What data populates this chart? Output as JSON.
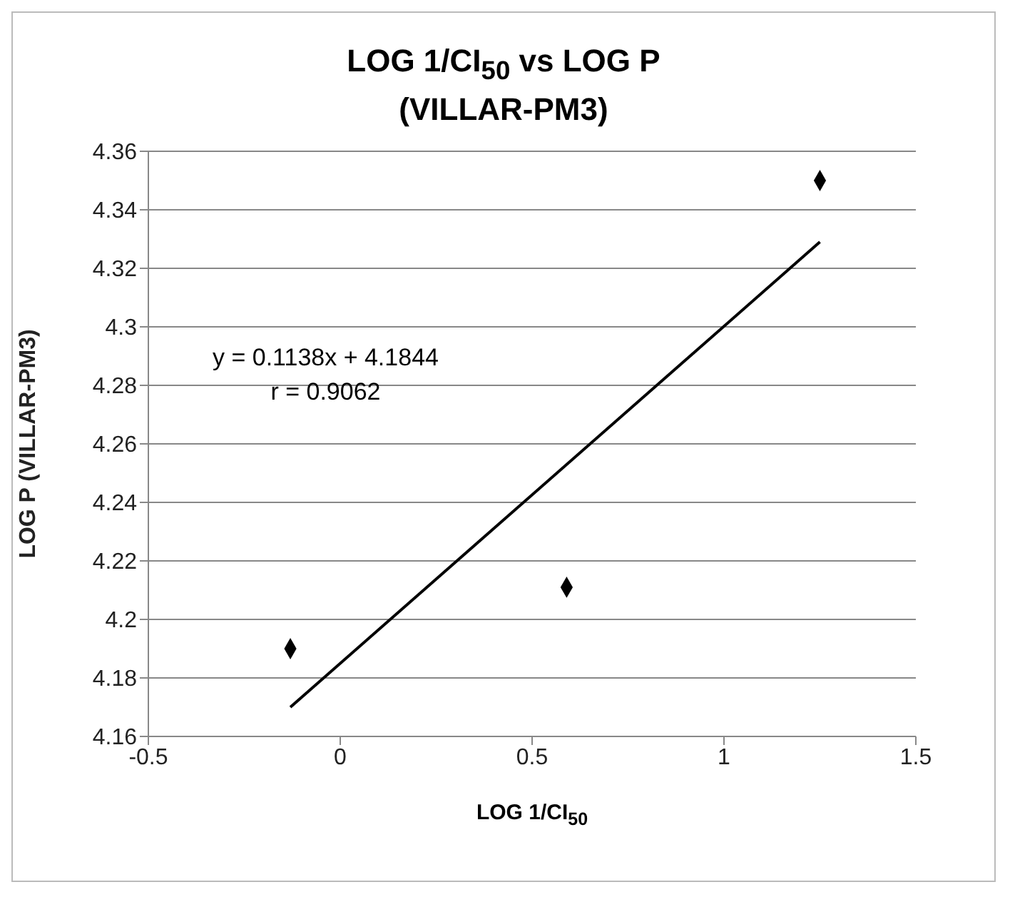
{
  "chart_data": {
    "type": "scatter",
    "title": "LOG 1/CI$_{50}$ vs LOG P",
    "subtitle": "(VILLAR-PM3)",
    "xlabel": "LOG 1/CI$_{50}$",
    "ylabel": "LOG P (VILLAR-PM3)",
    "x": [
      1.25,
      0.59,
      -0.13
    ],
    "series": [
      {
        "color": "#000000",
        "values": [
          4.35,
          4.211,
          4.19
        ],
        "marker": "diamond"
      },
      {
        "type": "line",
        "color": "#000000",
        "x": [
          1.25,
          -0.13
        ],
        "values": [
          4.329,
          4.17
        ]
      }
    ],
    "xlim": [
      -0.5,
      1.5
    ],
    "xticks": [
      -0.5,
      0,
      0.5,
      1,
      1.5
    ],
    "ylim": [
      4.16,
      4.36
    ],
    "yticks": [
      4.16,
      4.18,
      4.2,
      4.22,
      4.24,
      4.26,
      4.28,
      4.3,
      4.32,
      4.34,
      4.36
    ],
    "grid": "y",
    "annotations": [
      "y = 0.1138x + 4.1844",
      "r = 0.9062"
    ]
  }
}
